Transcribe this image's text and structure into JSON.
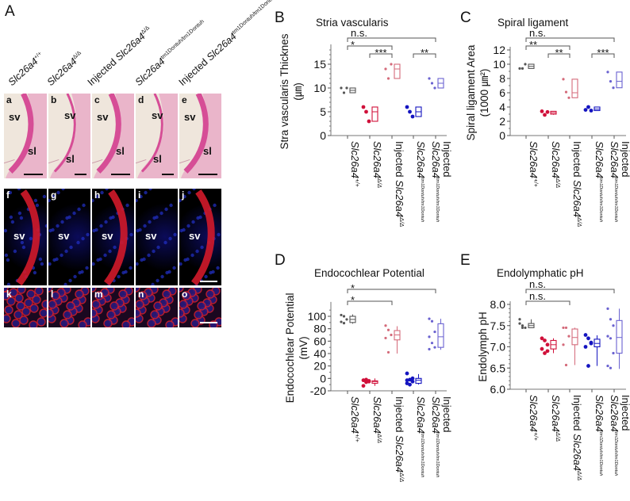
{
  "panel_A": {
    "letter": "A",
    "column_headers": [
      {
        "prefix": "",
        "gene": "Slc26a4",
        "sup": "+/+"
      },
      {
        "prefix": "",
        "gene": "Slc26a4",
        "sup": "Δ/Δ"
      },
      {
        "prefix": "Injected ",
        "gene": "Slc26a4",
        "sup": "Δ/Δ"
      },
      {
        "prefix": "",
        "gene": "Slc26a4",
        "sup": "tm1Dontuh/tm1Dontuh"
      },
      {
        "prefix": "Injected ",
        "gene": "Slc26a4",
        "sup": "tm1Dontuh/tm1Dontuh"
      }
    ],
    "rows": [
      {
        "type": "he",
        "labels": [
          "a",
          "b",
          "c",
          "d",
          "e"
        ],
        "sv": "sv",
        "sl": "sl"
      },
      {
        "type": "fluor",
        "labels": [
          "f",
          "g",
          "h",
          "i",
          "j"
        ],
        "sv": "sv",
        "red": [
          true,
          false,
          true,
          false,
          true
        ]
      },
      {
        "type": "cells",
        "labels": [
          "k",
          "l",
          "m",
          "n",
          "o"
        ]
      }
    ]
  },
  "chart_data": [
    {
      "id": "B",
      "letter": "B",
      "type": "box-scatter",
      "title": "Stria vascularis",
      "ylabel": [
        "Stra vascularis Thicknes",
        "(㎛)"
      ],
      "ylim": [
        0,
        18.5
      ],
      "yticks": [
        0,
        5,
        10,
        15
      ],
      "minor_step": 1,
      "categories": [
        {
          "prefix": "",
          "gene": "Slc26a4",
          "sup": "+/+"
        },
        {
          "prefix": "",
          "gene": "Slc26a4",
          "sup": "Δ/Δ"
        },
        {
          "prefix": "Injected ",
          "gene": "Slc26a4",
          "sup": "Δ/Δ"
        },
        {
          "prefix": "",
          "gene": "Slc26a4",
          "sup": "tm1Dontuh/tm1Dontuh"
        },
        {
          "prefix": "Injected",
          "gene": "Slc26a4",
          "sup": "tm1Dontuh/tm1Dontuh",
          "two_line": true
        }
      ],
      "colors": [
        "#555555",
        "#d0103a",
        "#d46a7a",
        "#1414c0",
        "#6a62d0"
      ],
      "groups": [
        {
          "points": [
            10,
            9,
            10
          ],
          "box": [
            9,
            9.5,
            10
          ],
          "whisker": [
            9,
            10
          ]
        },
        {
          "points": [
            6,
            5,
            3
          ],
          "box": [
            3,
            5,
            6
          ],
          "whisker": [
            3,
            6
          ]
        },
        {
          "points": [
            14,
            12,
            15
          ],
          "box": [
            12,
            14,
            15
          ],
          "whisker": [
            12,
            15
          ]
        },
        {
          "points": [
            6,
            5,
            4
          ],
          "box": [
            4,
            5,
            6
          ],
          "whisker": [
            4,
            6
          ]
        },
        {
          "points": [
            12,
            11,
            10
          ],
          "box": [
            10,
            11,
            12
          ],
          "whisker": [
            10,
            12
          ]
        }
      ],
      "significance": [
        {
          "from": 0,
          "to": 4,
          "label": "n.s.",
          "level": 3
        },
        {
          "from": 0,
          "to": 2,
          "label": "*",
          "level": 2
        },
        {
          "from": 1,
          "to": 2,
          "label": "***",
          "level": 1
        },
        {
          "from": 3,
          "to": 4,
          "label": "**",
          "level": 1
        }
      ]
    },
    {
      "id": "C",
      "letter": "C",
      "type": "box-scatter",
      "title": "Spiral ligament",
      "ylabel": [
        "Spiral ligament Area",
        "(1000 ㎛²)"
      ],
      "ylim": [
        0,
        12
      ],
      "yticks": [
        0,
        2,
        4,
        6,
        8,
        10,
        12
      ],
      "minor_step": 1,
      "categories": [
        {
          "prefix": "",
          "gene": "Slc26a4",
          "sup": "+/+"
        },
        {
          "prefix": "",
          "gene": "Slc26a4",
          "sup": "Δ/Δ"
        },
        {
          "prefix": "Injected ",
          "gene": "Slc26a4",
          "sup": "Δ/Δ"
        },
        {
          "prefix": "",
          "gene": "Slc26a4",
          "sup": "tm1Dontuh/tm1Dontuh"
        },
        {
          "prefix": "Injected",
          "gene": "Slc26a4",
          "sup": "tm1Dontuh/tm1Dontuh",
          "two_line": true
        }
      ],
      "colors": [
        "#555555",
        "#d0103a",
        "#d46a7a",
        "#1414c0",
        "#6a62d0"
      ],
      "groups": [
        {
          "points": [
            9.4,
            9.4,
            10
          ],
          "box": [
            9.4,
            9.7,
            10
          ],
          "whisker": [
            9.4,
            10
          ]
        },
        {
          "points": [
            3.4,
            2.9,
            3.3
          ],
          "box": [
            3.0,
            3.2,
            3.4
          ],
          "whisker": [
            2.9,
            3.4
          ]
        },
        {
          "points": [
            7.9,
            6.1,
            5.3
          ],
          "box": [
            5.3,
            6.0,
            7.9
          ],
          "whisker": [
            5.3,
            7.9
          ]
        },
        {
          "points": [
            3.6,
            4.0,
            3.5
          ],
          "box": [
            3.5,
            3.7,
            4.0
          ],
          "whisker": [
            3.5,
            4.0
          ]
        },
        {
          "points": [
            8.9,
            7.6,
            6.7
          ],
          "box": [
            6.7,
            7.6,
            8.9
          ],
          "whisker": [
            6.7,
            8.9
          ]
        }
      ],
      "significance": [
        {
          "from": 0,
          "to": 4,
          "label": "n.s.",
          "level": 3
        },
        {
          "from": 0,
          "to": 2,
          "label": "**",
          "level": 2
        },
        {
          "from": 1,
          "to": 2,
          "label": "**",
          "level": 1
        },
        {
          "from": 3,
          "to": 4,
          "label": "***",
          "level": 1
        }
      ]
    },
    {
      "id": "D",
      "letter": "D",
      "type": "box-scatter",
      "title": "Endocochlear Potential",
      "ylabel": [
        "Endocochlear Potential",
        "(mV)"
      ],
      "ylim": [
        -20,
        118
      ],
      "yticks": [
        -20,
        0,
        20,
        40,
        60,
        80,
        100
      ],
      "minor_step": 10,
      "categories": [
        {
          "prefix": "",
          "gene": "Slc26a4",
          "sup": "+/+"
        },
        {
          "prefix": "",
          "gene": "Slc26a4",
          "sup": "Δ/Δ"
        },
        {
          "prefix": "Injected ",
          "gene": "Slc26a4",
          "sup": "Δ/Δ"
        },
        {
          "prefix": "",
          "gene": "Slc26a4",
          "sup": "tm1Dontuh/tm1Dontuh"
        },
        {
          "prefix": "Injected",
          "gene": "Slc26a4",
          "sup": "tm1Dontuh/tm1Dontuh",
          "two_line": true
        }
      ],
      "colors": [
        "#555555",
        "#d0103a",
        "#d46a7a",
        "#1414c0",
        "#6a62d0"
      ],
      "groups": [
        {
          "points": [
            102,
            100,
            95,
            91,
            89
          ],
          "box": [
            90,
            95,
            100
          ],
          "whisker": [
            88,
            103
          ]
        },
        {
          "points": [
            -3,
            -6,
            -4,
            -12,
            -2,
            -5
          ],
          "box": [
            -6,
            -5,
            -4
          ],
          "whisker": [
            -12,
            0
          ]
        },
        {
          "points": [
            85,
            78,
            70,
            65,
            42
          ],
          "box": [
            62,
            70,
            77
          ],
          "whisker": [
            40,
            84
          ]
        },
        {
          "points": [
            8,
            -2,
            -5,
            -8,
            -10,
            0,
            -3
          ],
          "box": [
            -8,
            -3,
            0
          ],
          "whisker": [
            -10,
            7
          ]
        },
        {
          "points": [
            96,
            92,
            75,
            67,
            57,
            50,
            47
          ],
          "box": [
            50,
            67,
            88
          ],
          "whisker": [
            46,
            96
          ]
        }
      ],
      "significance": [
        {
          "from": 0,
          "to": 4,
          "label": "*",
          "level": 2
        },
        {
          "from": 0,
          "to": 2,
          "label": "*",
          "level": 1
        }
      ]
    },
    {
      "id": "E",
      "letter": "E",
      "type": "box-scatter",
      "title": "Endolymphatic pH",
      "ylabel": [
        "Endolymph pH"
      ],
      "ylim": [
        6.0,
        8.0
      ],
      "yticks": [
        6.0,
        6.5,
        7.0,
        7.5,
        8.0
      ],
      "minor_step": 0.1,
      "categories": [
        {
          "prefix": "",
          "gene": "Slc26a4",
          "sup": "+/+"
        },
        {
          "prefix": "",
          "gene": "Slc26a4",
          "sup": "Δ/Δ"
        },
        {
          "prefix": "Injected ",
          "gene": "Slc26a4",
          "sup": "Δ/Δ"
        },
        {
          "prefix": "",
          "gene": "Slc26a4",
          "sup": "tm1Dontuh/tm1Dontuh"
        },
        {
          "prefix": "Injected",
          "gene": "Slc26a4",
          "sup": "tm1Dontuh/tm1Dontuh",
          "two_line": true
        }
      ],
      "colors": [
        "#555555",
        "#d0103a",
        "#d46a7a",
        "#1414c0",
        "#6a62d0"
      ],
      "groups": [
        {
          "points": [
            7.65,
            7.5,
            7.45,
            7.55,
            7.45
          ],
          "box": [
            7.45,
            7.5,
            7.55
          ],
          "whisker": [
            7.45,
            7.65
          ]
        },
        {
          "points": [
            7.2,
            7.15,
            7.05,
            6.95,
            6.85,
            6.9
          ],
          "box": [
            6.95,
            7.05,
            7.15
          ],
          "whisker": [
            6.85,
            7.2
          ]
        },
        {
          "points": [
            7.45,
            7.45,
            7.25,
            7.05,
            6.57
          ],
          "box": [
            7.05,
            7.22,
            7.42
          ],
          "whisker": [
            6.57,
            7.45
          ]
        },
        {
          "points": [
            7.28,
            7.2,
            7.1,
            7.0,
            6.55,
            7.08
          ],
          "box": [
            7.0,
            7.08,
            7.18
          ],
          "whisker": [
            6.55,
            7.27
          ]
        },
        {
          "points": [
            7.9,
            7.65,
            7.5,
            7.25,
            7.2,
            6.85,
            6.55,
            6.5
          ],
          "box": [
            6.85,
            7.22,
            7.62
          ],
          "whisker": [
            6.48,
            7.9
          ]
        }
      ],
      "significance": [
        {
          "from": 0,
          "to": 4,
          "label": "n.s.",
          "level": 2
        },
        {
          "from": 0,
          "to": 2,
          "label": "n.s.",
          "level": 1
        }
      ]
    }
  ]
}
